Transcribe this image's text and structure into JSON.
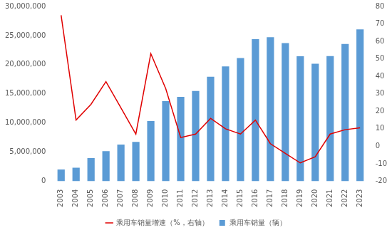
{
  "chart_data": {
    "type": "bar",
    "categories": [
      "2003",
      "2004",
      "2005",
      "2006",
      "2007",
      "2008",
      "2009",
      "2010",
      "2011",
      "2012",
      "2013",
      "2014",
      "2015",
      "2016",
      "2017",
      "2018",
      "2019",
      "2020",
      "2021",
      "2022",
      "2023"
    ],
    "series": [
      {
        "name": "乘用车销量（辆）",
        "type": "bar",
        "color": "#5b9bd5",
        "values": [
          2020000,
          2330000,
          3970000,
          5180000,
          6300000,
          6760000,
          10330000,
          13760000,
          14470000,
          15500000,
          17930000,
          19700000,
          21150000,
          24380000,
          24720000,
          23710000,
          21440000,
          20180000,
          21480000,
          23560000,
          26060000
        ]
      },
      {
        "name": "乘用车销量增速（%，右轴）",
        "type": "line",
        "color": "#e00000",
        "axis": "y2",
        "marker": "none",
        "values": [
          75,
          15,
          24,
          37,
          22,
          7,
          53,
          33,
          5,
          7,
          16,
          10,
          7,
          15,
          1.5,
          -4,
          -9.5,
          -6,
          7,
          9.5,
          10.6
        ]
      }
    ],
    "ylim": [
      0,
      30000000
    ],
    "yticks": [
      0,
      {
        "value": 5000000,
        "label": "5,000,000"
      },
      {
        "value": 10000000,
        "label": "10,000,000"
      },
      {
        "value": 15000000,
        "label": "15,000,000"
      },
      {
        "value": 20000000,
        "label": "20,000,000"
      },
      {
        "value": 25000000,
        "label": "25,000,000"
      },
      {
        "value": 30000000,
        "label": "30,000,000"
      }
    ],
    "y2lim": [
      -20,
      80
    ],
    "y2ticks": [
      -20,
      -10,
      0,
      10,
      20,
      30,
      40,
      50,
      60,
      70,
      80
    ],
    "grid": false,
    "legend": "bottom"
  }
}
